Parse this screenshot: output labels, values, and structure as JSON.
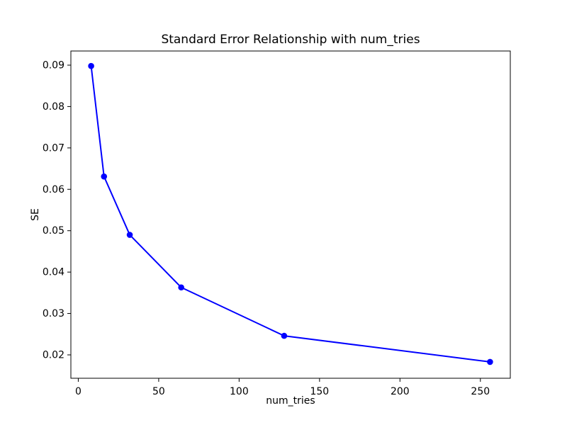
{
  "chart_data": {
    "type": "line",
    "title": "Standard Error Relationship with num_tries",
    "xlabel": "num_tries",
    "ylabel": "SE",
    "series": [
      {
        "name": "SE",
        "color": "#0000ff",
        "marker": "circle",
        "line_width": 2,
        "marker_radius": 4.3,
        "x": [
          8,
          16,
          32,
          64,
          128,
          256
        ],
        "y": [
          0.0898,
          0.0631,
          0.049,
          0.0363,
          0.0246,
          0.0183
        ]
      }
    ],
    "xticks": [
      0,
      50,
      100,
      150,
      200,
      250
    ],
    "yticks": [
      0.02,
      0.03,
      0.04,
      0.05,
      0.06,
      0.07,
      0.08,
      0.09
    ],
    "ytick_decimals": 2,
    "xlim": [
      -4.6,
      268.6
    ],
    "ylim": [
      0.01435,
      0.09342
    ],
    "grid": false,
    "legend_position": "none",
    "background_color": "#ffffff",
    "axis_color": "#000000",
    "text_color": "#000000"
  }
}
